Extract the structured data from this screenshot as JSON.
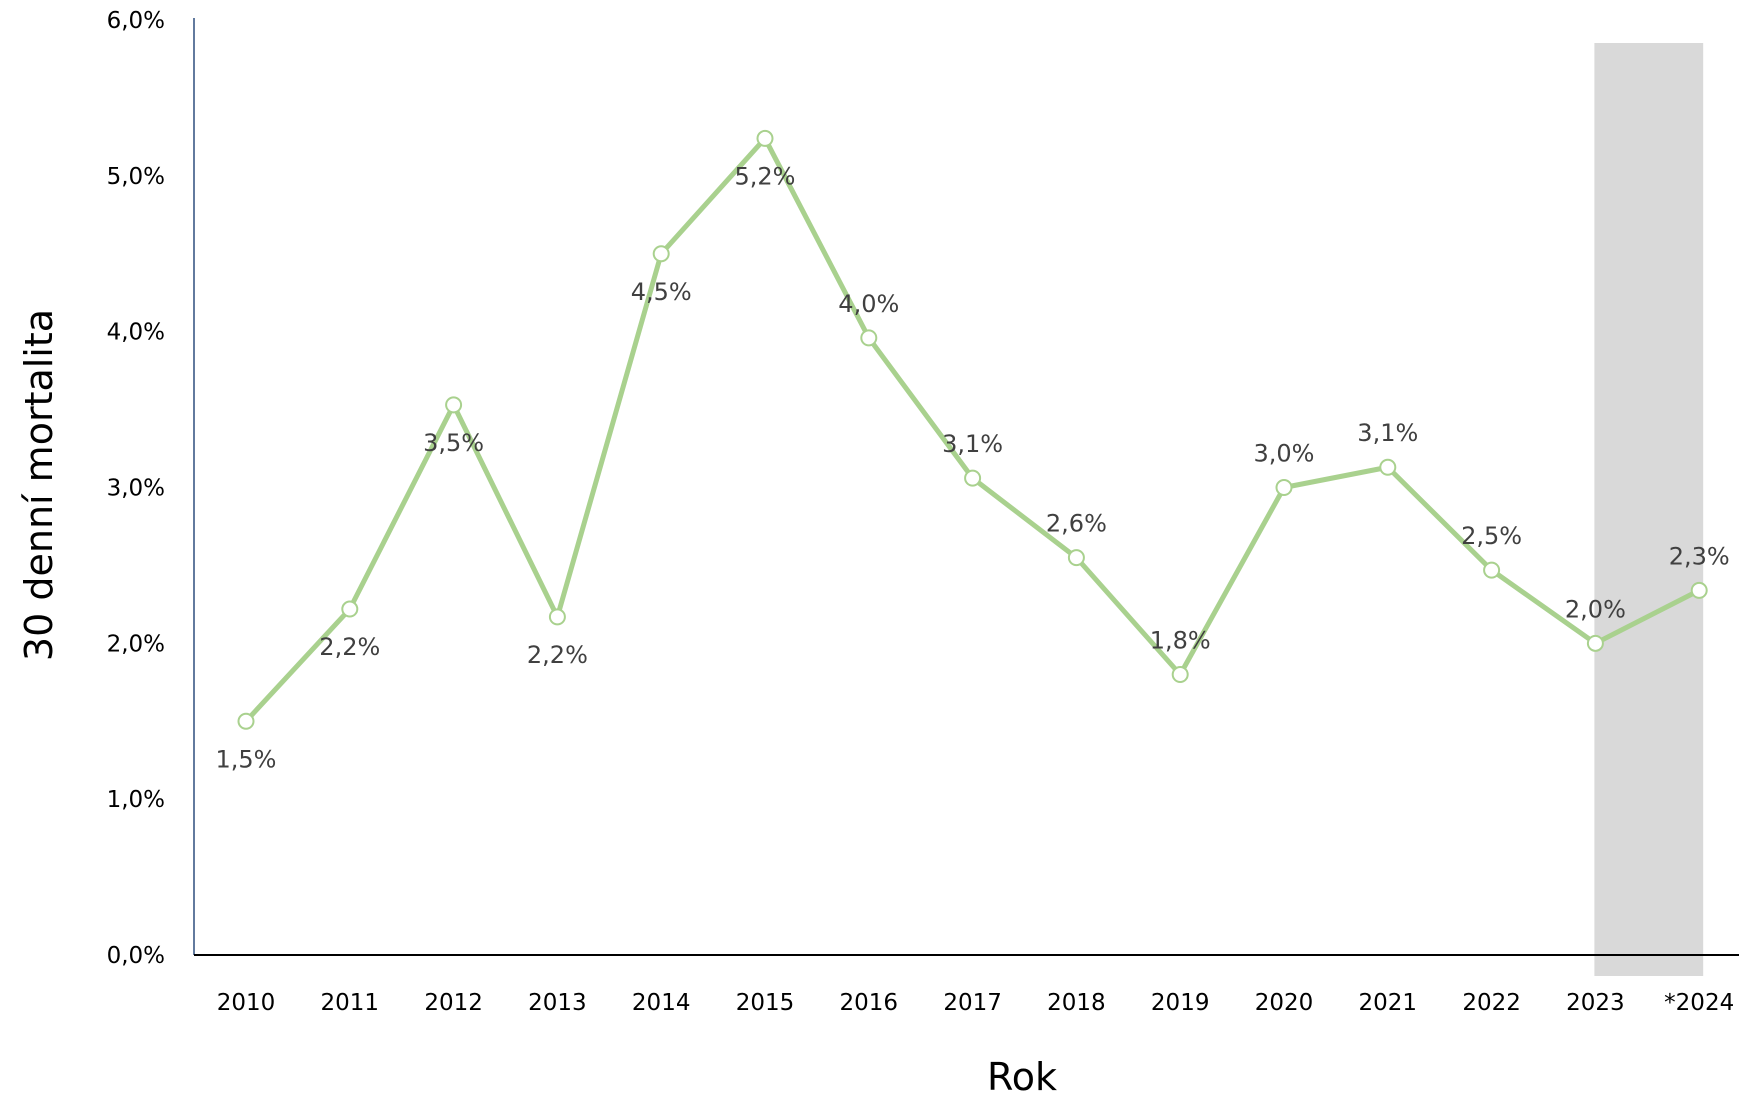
{
  "chart_data": {
    "type": "line",
    "title": "",
    "xlabel": "Rok",
    "ylabel": "30 denní mortalita",
    "categories": [
      "2010",
      "2011",
      "2012",
      "2013",
      "2014",
      "2015",
      "2016",
      "2017",
      "2018",
      "2019",
      "2020",
      "2021",
      "2022",
      "2023",
      "*2024"
    ],
    "values": [
      1.5,
      2.22,
      3.53,
      2.17,
      4.5,
      5.24,
      3.96,
      3.06,
      2.55,
      1.8,
      3.0,
      3.13,
      2.47,
      2.0,
      2.34
    ],
    "data_labels": [
      "1,5%",
      "2,2%",
      "3,5%",
      "2,2%",
      "4,5%",
      "5,2%",
      "4,0%",
      "3,1%",
      "2,6%",
      "1,8%",
      "3,0%",
      "3,1%",
      "2,5%",
      "2,0%",
      "2,3%"
    ],
    "label_position": [
      "below",
      "below",
      "below",
      "below",
      "below",
      "below",
      "above",
      "above",
      "above",
      "above",
      "above",
      "above",
      "above",
      "above",
      "above"
    ],
    "ylim": [
      0,
      6
    ],
    "yticks": [
      0,
      1,
      2,
      3,
      4,
      5,
      6
    ],
    "ytick_labels": [
      "0,0%",
      "1,0%",
      "2,0%",
      "3,0%",
      "4,0%",
      "5,0%",
      "6,0%"
    ],
    "highlight_categories": [
      "2023"
    ],
    "grid": false,
    "legend": "none",
    "colors": {
      "line": "#a9d18e",
      "marker_fill": "#ffffff",
      "highlight": "#d9d9d9",
      "axis_line": "#000000",
      "y_axis_line": "#2f4f7f"
    }
  }
}
